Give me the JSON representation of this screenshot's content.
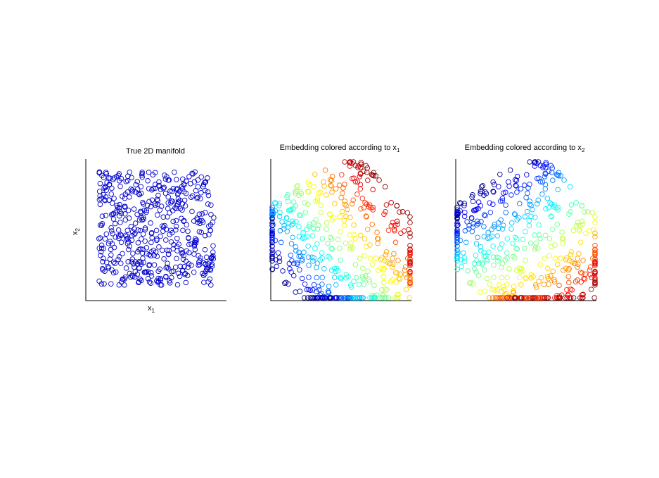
{
  "figure": {
    "background": "#ffffff",
    "marker": "open-circle",
    "panels": [
      {
        "id": "true",
        "title": "True 2D manifold",
        "title_sub": "",
        "xlabel": "x",
        "xlabel_sub": "1",
        "ylabel": "x",
        "ylabel_sub": "2",
        "color_mode": "solid",
        "color": "#0000cc",
        "seed": 7
      },
      {
        "id": "emb1",
        "title": "Embedding colored according to x",
        "title_sub": "1",
        "xlabel": "",
        "xlabel_sub": "",
        "ylabel": "",
        "ylabel_sub": "",
        "color_mode": "jet-x1",
        "colormap": "jet",
        "seed": 7
      },
      {
        "id": "emb2",
        "title": "Embedding colored according to x",
        "title_sub": "2",
        "xlabel": "",
        "xlabel_sub": "",
        "ylabel": "",
        "ylabel_sub": "",
        "color_mode": "jet-x2",
        "colormap": "jet",
        "seed": 7
      }
    ]
  },
  "chart_data": [
    {
      "type": "scatter",
      "title": "True 2D manifold",
      "xlabel": "x1",
      "ylabel": "x2",
      "ticks": "none",
      "xlim": [
        0,
        1
      ],
      "ylim": [
        0,
        1
      ],
      "n_points": 500,
      "distribution": "uniform over unit square",
      "color": "#0000cc"
    },
    {
      "type": "scatter",
      "title": "Embedding colored according to x1",
      "ticks": "none",
      "n_points": 500,
      "colormap": "jet",
      "color_by": "x1"
    },
    {
      "type": "scatter",
      "title": "Embedding colored according to x2",
      "ticks": "none",
      "n_points": 500,
      "colormap": "jet",
      "color_by": "x2"
    }
  ]
}
